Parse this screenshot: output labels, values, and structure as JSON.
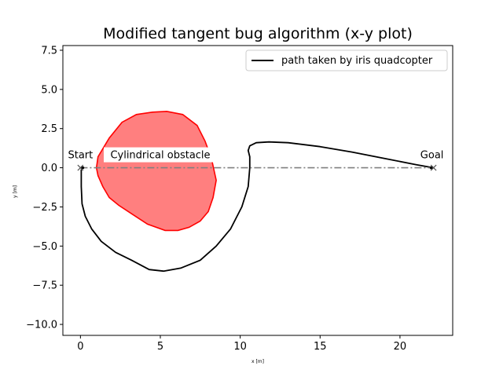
{
  "chart_data": {
    "type": "line",
    "title": "Modified tangent bug algorithm (x-y plot)",
    "xlabel": "x [m]",
    "ylabel": "y [m]",
    "xlim": [
      -1.1,
      23.3
    ],
    "ylim": [
      -10.7,
      7.8
    ],
    "xticks": [
      0,
      5,
      10,
      15,
      20
    ],
    "xtick_labels": [
      "0",
      "5",
      "10",
      "15",
      "20"
    ],
    "yticks": [
      7.5,
      5.0,
      2.5,
      0.0,
      -2.5,
      -5.0,
      -7.5,
      -10.0
    ],
    "ytick_labels": [
      "7.5",
      "5.0",
      "2.5",
      "0.0",
      "−2.5",
      "−5.0",
      "−7.5",
      "−10.0"
    ],
    "grid": false,
    "legend": {
      "placement": "top-right",
      "entries": [
        "path taken by iris quadcopter"
      ]
    },
    "series": [
      {
        "name": "path taken by iris quadcopter",
        "color": "#000000",
        "style": "solid",
        "x": [
          0.05,
          0.05,
          0.1,
          0.3,
          0.7,
          1.3,
          2.2,
          3.2,
          4.3,
          5.2,
          6.3,
          7.5,
          8.5,
          9.4,
          10.1,
          10.5,
          10.6,
          10.6,
          10.5,
          10.6,
          11.0,
          11.8,
          13.0,
          15.0,
          17.0,
          19.0,
          21.0,
          22.1
        ],
        "y": [
          -0.1,
          -1.2,
          -2.3,
          -3.1,
          -3.9,
          -4.7,
          -5.4,
          -5.9,
          -6.5,
          -6.6,
          -6.4,
          -5.9,
          -5.0,
          -3.9,
          -2.5,
          -1.2,
          0.0,
          0.7,
          1.1,
          1.4,
          1.6,
          1.65,
          1.6,
          1.35,
          1.0,
          0.6,
          0.2,
          0.0
        ]
      },
      {
        "name": "",
        "color": "#808080",
        "style": "dashdot",
        "x": [
          0.0,
          22.1
        ],
        "y": [
          0.0,
          0.0
        ]
      }
    ],
    "obstacle": {
      "label": "Cylindrical obstacle",
      "fill": "#ff7f7f",
      "edge": "#ff0000",
      "x": [
        1.0,
        1.1,
        1.8,
        2.6,
        3.5,
        4.5,
        5.4,
        6.4,
        7.3,
        7.8,
        8.2,
        8.5,
        8.3,
        8.0,
        7.5,
        6.8,
        6.1,
        5.3,
        4.2,
        3.3,
        2.4,
        1.8,
        1.4,
        1.1,
        1.0
      ],
      "y": [
        0.0,
        0.7,
        1.9,
        2.9,
        3.4,
        3.55,
        3.6,
        3.4,
        2.7,
        1.7,
        0.6,
        -0.8,
        -1.9,
        -2.8,
        -3.4,
        -3.8,
        -4.0,
        -4.0,
        -3.6,
        -3.0,
        -2.4,
        -1.9,
        -1.2,
        -0.5,
        0.0
      ]
    },
    "annotations": [
      {
        "text": "Start",
        "x": 0.0,
        "y": 0.0
      },
      {
        "text": "Cylindrical obstacle",
        "x": 5.0,
        "y": 0.0
      },
      {
        "text": "Goal",
        "x": 22.1,
        "y": 0.0
      }
    ],
    "markers": [
      {
        "x": 0.0,
        "y": 0.0,
        "symbol": "x"
      },
      {
        "x": 22.1,
        "y": 0.0,
        "symbol": "x"
      }
    ]
  }
}
